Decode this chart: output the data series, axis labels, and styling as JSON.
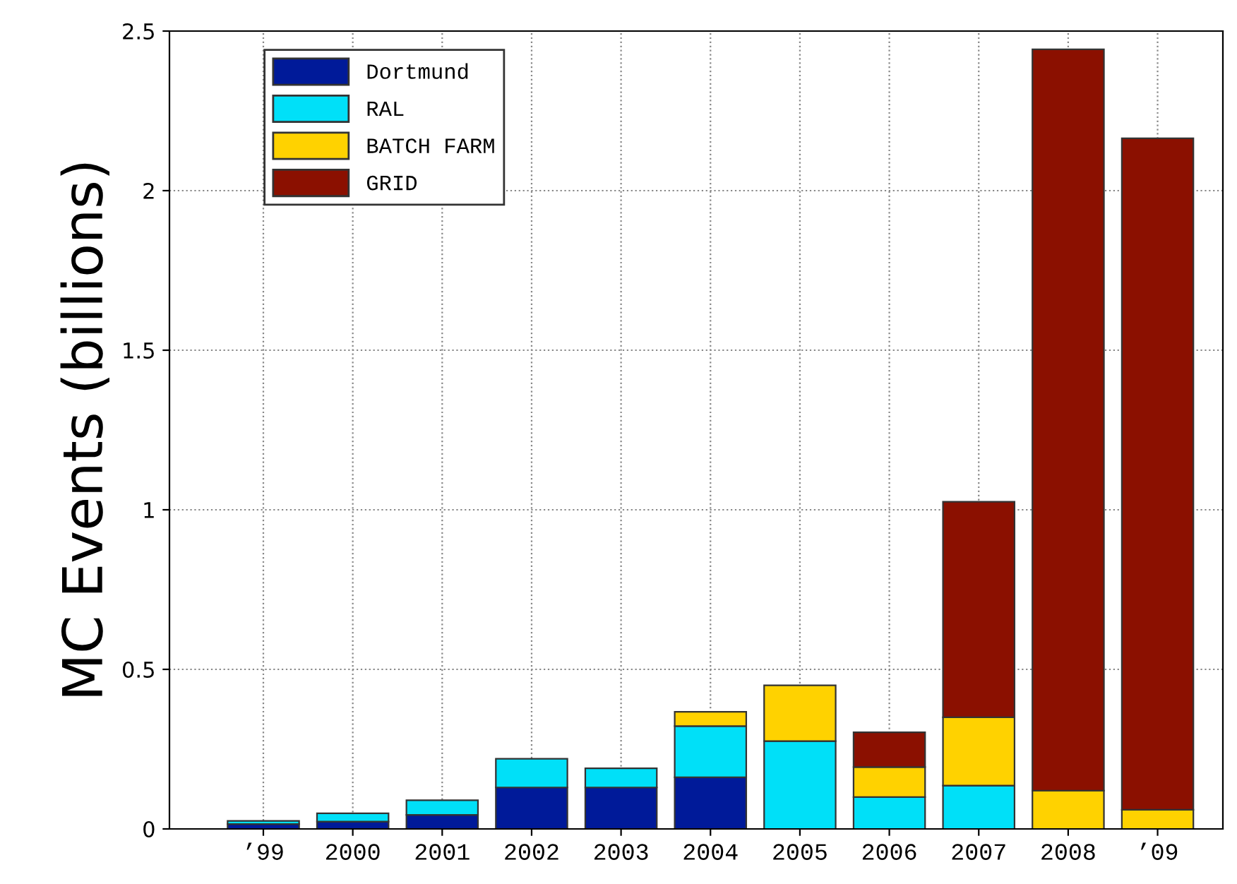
{
  "chart_data": {
    "type": "bar",
    "stacked": true,
    "ylabel": "MC Events (billions)",
    "categories": [
      "’99",
      "2000",
      "2001",
      "2002",
      "2003",
      "2004",
      "2005",
      "2006",
      "2007",
      "2008",
      "’09"
    ],
    "series": [
      {
        "name": "Dortmund",
        "color": "#001a99",
        "values": [
          0.015,
          0.023,
          0.044,
          0.13,
          0.13,
          0.162,
          null,
          null,
          null,
          null,
          null
        ]
      },
      {
        "name": "RAL",
        "color": "#00e0f8",
        "values": [
          0.01,
          0.026,
          0.046,
          0.09,
          0.06,
          0.16,
          0.275,
          0.1,
          0.136,
          null,
          null
        ]
      },
      {
        "name": "BATCH FARM",
        "color": "#ffd200",
        "values": [
          null,
          null,
          null,
          null,
          null,
          0.045,
          0.175,
          0.094,
          0.214,
          0.12,
          0.06
        ]
      },
      {
        "name": "GRID",
        "color": "#8b1000",
        "values": [
          null,
          null,
          null,
          null,
          null,
          null,
          null,
          0.109,
          0.675,
          2.323,
          2.104
        ]
      }
    ],
    "ylim": [
      0,
      2.5
    ],
    "yticks": [
      0,
      0.5,
      1,
      1.5,
      2,
      2.5
    ],
    "grid": true,
    "legend": "top left"
  }
}
